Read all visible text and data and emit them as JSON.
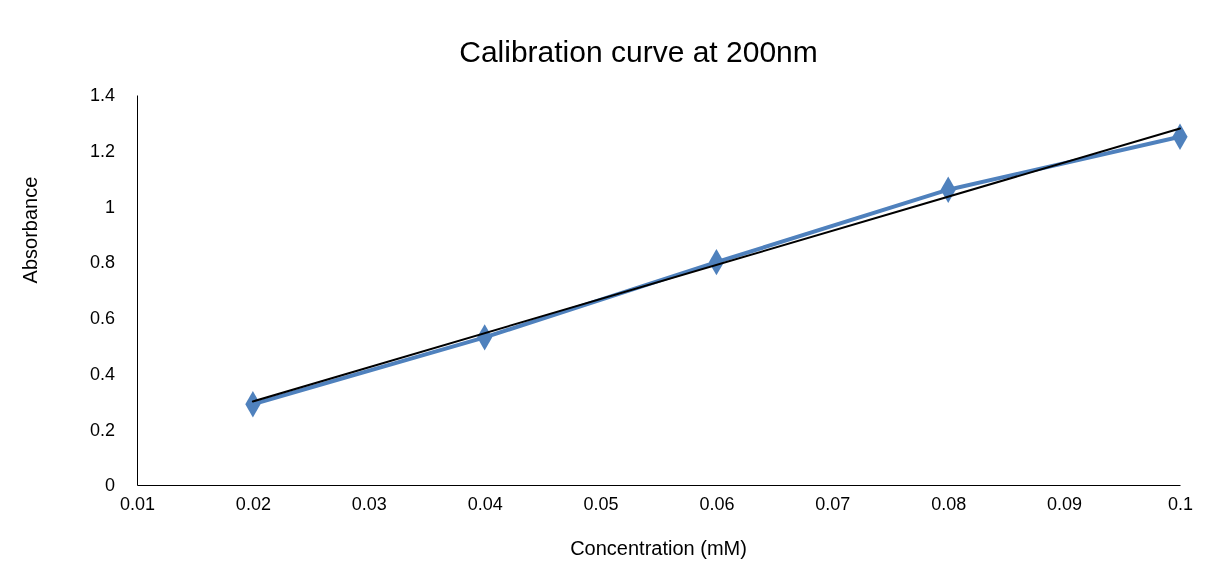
{
  "chart_data": {
    "type": "line",
    "title": "Calibration curve at 200nm",
    "xlabel": "Concentration (mM)",
    "ylabel": "Absorbance",
    "x": [
      0.02,
      0.04,
      0.06,
      0.08,
      0.1
    ],
    "series": [
      {
        "color": "#4f81bd",
        "values": [
          0.29,
          0.53,
          0.8,
          1.06,
          1.25
        ],
        "marker": "diamond"
      },
      {
        "type": "line",
        "color": "#000000",
        "x": [
          0.02,
          0.1
        ],
        "values": [
          0.3,
          1.28
        ],
        "marker": "none"
      }
    ],
    "xlim": [
      0.01,
      0.1
    ],
    "xticks": [
      0.01,
      0.02,
      0.03,
      0.04,
      0.05,
      0.06,
      0.07,
      0.08,
      0.09,
      0.1
    ],
    "ylim": [
      0,
      1.4
    ],
    "yticks": [
      0,
      0.2,
      0.4,
      0.6,
      0.8,
      1,
      1.2,
      1.4
    ],
    "grid": false
  }
}
